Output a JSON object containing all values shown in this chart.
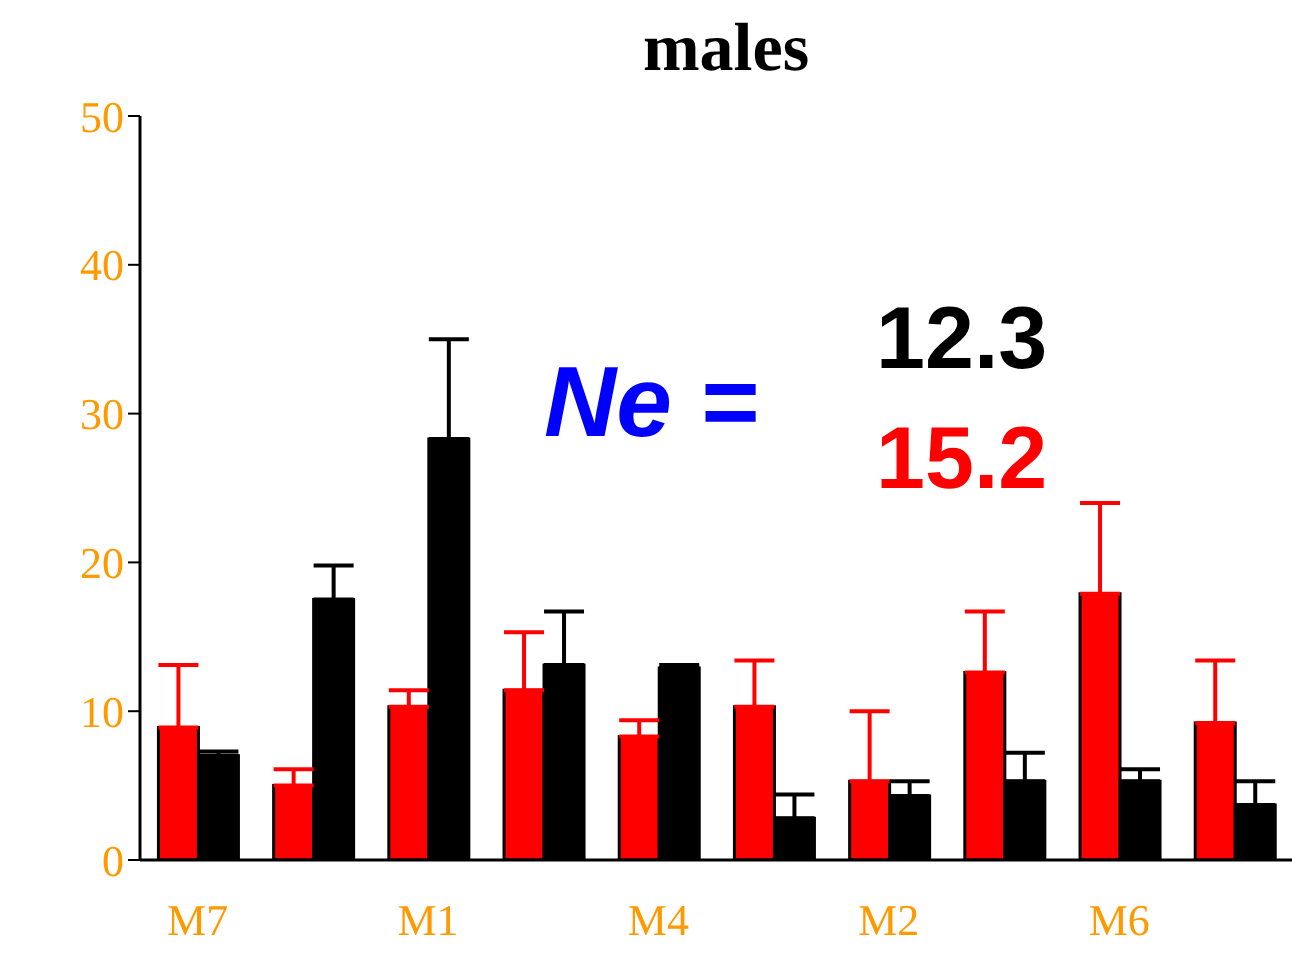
{
  "chart_data": {
    "type": "bar",
    "title": "males",
    "categories": [
      "M7",
      null,
      "M1",
      null,
      "M4",
      null,
      "M2",
      null,
      "M6",
      null
    ],
    "series": [
      {
        "color": "#ff0000",
        "values": [
          8.9,
          5.0,
          10.3,
          11.4,
          8.3,
          10.3,
          5.3,
          12.6,
          17.9,
          9.2
        ],
        "errors": [
          [
            8.9,
            13.1
          ],
          [
            5.0,
            6.1
          ],
          [
            10.3,
            11.4
          ],
          [
            11.4,
            15.3
          ],
          [
            8.3,
            9.4
          ],
          [
            10.3,
            13.4
          ],
          [
            5.3,
            10.0
          ],
          [
            12.6,
            16.7
          ],
          [
            17.9,
            24.0
          ],
          [
            9.2,
            13.4
          ]
        ]
      },
      {
        "color": "#000000",
        "values": [
          7.0,
          17.5,
          28.3,
          13.1,
          12.9,
          2.8,
          4.3,
          5.3,
          5.3,
          3.7
        ],
        "errors": [
          [
            7.0,
            7.3
          ],
          [
            17.5,
            19.8
          ],
          [
            28.3,
            35.0
          ],
          [
            13.1,
            16.7
          ],
          [
            12.9,
            13.1
          ],
          [
            2.8,
            4.4
          ],
          [
            4.3,
            5.3
          ],
          [
            5.3,
            7.2
          ],
          [
            5.3,
            6.1
          ],
          [
            3.7,
            5.3
          ]
        ]
      }
    ],
    "ylim": [
      0,
      50
    ],
    "yticks": [
      0,
      10,
      20,
      30,
      40,
      50
    ],
    "grid": false,
    "legend": false,
    "annotations": [
      "Ne =",
      "12.3",
      "15.2"
    ]
  }
}
